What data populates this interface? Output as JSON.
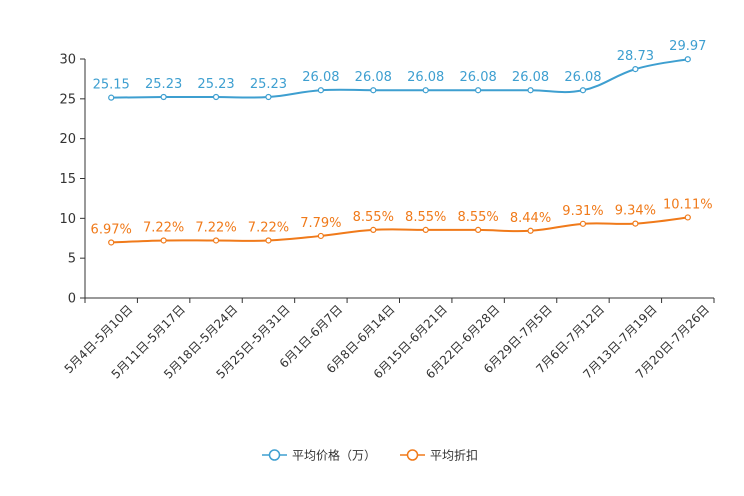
{
  "chart_data": {
    "type": "line",
    "categories": [
      "5月4日-5月10日",
      "5月11日-5月17日",
      "5月18日-5月24日",
      "5月25日-5月31日",
      "6月1日-6月7日",
      "6月8日-6月14日",
      "6月15日-6月21日",
      "6月22日-6月28日",
      "6月29日-7月5日",
      "7月6日-7月12日",
      "7月13日-7月19日",
      "7月20日-7月26日"
    ],
    "ylim": [
      0,
      30
    ],
    "yticks": [
      0,
      5,
      10,
      15,
      20,
      25,
      30
    ],
    "series": [
      {
        "name": "平均价格（万）",
        "color": "#3e9fd0",
        "values": [
          25.15,
          25.23,
          25.23,
          25.23,
          26.08,
          26.08,
          26.08,
          26.08,
          26.08,
          26.08,
          28.73,
          29.97
        ],
        "labels": [
          "25.15",
          "25.23",
          "25.23",
          "25.23",
          "26.08",
          "26.08",
          "26.08",
          "26.08",
          "26.08",
          "26.08",
          "28.73",
          "29.97"
        ]
      },
      {
        "name": "平均折扣",
        "color": "#f07a1a",
        "values": [
          6.97,
          7.22,
          7.22,
          7.22,
          7.79,
          8.55,
          8.55,
          8.55,
          8.44,
          9.31,
          9.34,
          10.11
        ],
        "labels": [
          "6.97%",
          "7.22%",
          "7.22%",
          "7.22%",
          "7.79%",
          "8.55%",
          "8.55%",
          "8.55%",
          "8.44%",
          "9.31%",
          "9.34%",
          "10.11%"
        ]
      }
    ],
    "legend_position": "bottom-center",
    "grid": false
  }
}
